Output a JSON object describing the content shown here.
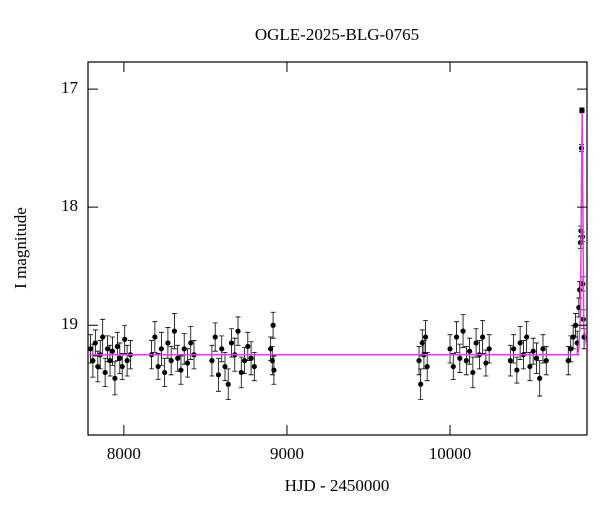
{
  "chart_data": {
    "type": "scatter",
    "title": "OGLE-2025-BLG-0765",
    "x_label": "HJD - 2450000",
    "y_label": "I magnitude",
    "xlim": [
      7780,
      10840
    ],
    "ylim": [
      19.93,
      16.77
    ],
    "xticks": [
      8000,
      9000,
      10000
    ],
    "yticks": [
      17,
      18,
      19
    ],
    "color": "#000000",
    "x": [
      7795,
      7810,
      7825,
      7840,
      7855,
      7870,
      7885,
      7900,
      7915,
      7930,
      7945,
      7960,
      7975,
      7990,
      8005,
      8020,
      8040,
      8170,
      8190,
      8210,
      8230,
      8250,
      8270,
      8290,
      8310,
      8330,
      8350,
      8370,
      8390,
      8410,
      8430,
      8540,
      8560,
      8580,
      8600,
      8620,
      8640,
      8660,
      8680,
      8700,
      8720,
      8740,
      8760,
      8780,
      8800,
      8900,
      8910,
      8915,
      8920,
      9810,
      9820,
      9830,
      9840,
      9850,
      9860,
      10000,
      10020,
      10040,
      10060,
      10080,
      10100,
      10120,
      10140,
      10160,
      10180,
      10200,
      10220,
      10240,
      10370,
      10390,
      10410,
      10430,
      10450,
      10470,
      10490,
      10510,
      10530,
      10550,
      10570,
      10590,
      10725,
      10740,
      10755,
      10770,
      10780,
      10790,
      10795,
      10800,
      10803,
      10806,
      10808,
      10810,
      10812,
      10815,
      10818,
      10822
    ],
    "values": [
      19.2,
      19.3,
      19.15,
      19.35,
      19.25,
      19.1,
      19.4,
      19.2,
      19.3,
      19.22,
      19.45,
      19.18,
      19.28,
      19.35,
      19.12,
      19.3,
      19.25,
      19.25,
      19.1,
      19.35,
      19.2,
      19.4,
      19.15,
      19.3,
      19.05,
      19.28,
      19.38,
      19.2,
      19.32,
      19.15,
      19.25,
      19.3,
      19.1,
      19.42,
      19.2,
      19.35,
      19.5,
      19.15,
      19.25,
      19.05,
      19.4,
      19.3,
      19.18,
      19.28,
      19.35,
      19.2,
      19.3,
      19.0,
      19.38,
      19.3,
      19.5,
      19.15,
      19.25,
      19.1,
      19.35,
      19.2,
      19.35,
      19.1,
      19.28,
      19.05,
      19.3,
      19.22,
      19.4,
      19.15,
      19.25,
      19.1,
      19.32,
      19.2,
      19.3,
      19.2,
      19.38,
      19.15,
      19.25,
      19.1,
      19.35,
      19.22,
      19.28,
      19.45,
      19.2,
      19.3,
      19.3,
      19.2,
      19.1,
      19.0,
      19.15,
      18.85,
      18.7,
      18.3,
      18.2,
      17.5,
      17.18,
      17.18,
      18.25,
      18.65,
      18.95,
      19.1
    ],
    "errors": [
      0.12,
      0.14,
      0.11,
      0.13,
      0.12,
      0.15,
      0.12,
      0.11,
      0.13,
      0.12,
      0.14,
      0.12,
      0.13,
      0.11,
      0.12,
      0.13,
      0.12,
      0.12,
      0.13,
      0.11,
      0.14,
      0.12,
      0.13,
      0.12,
      0.15,
      0.11,
      0.12,
      0.13,
      0.12,
      0.14,
      0.12,
      0.13,
      0.12,
      0.14,
      0.11,
      0.12,
      0.13,
      0.12,
      0.14,
      0.12,
      0.13,
      0.11,
      0.12,
      0.14,
      0.12,
      0.1,
      0.12,
      0.11,
      0.12,
      0.12,
      0.13,
      0.11,
      0.12,
      0.14,
      0.12,
      0.12,
      0.11,
      0.13,
      0.12,
      0.14,
      0.12,
      0.11,
      0.13,
      0.12,
      0.12,
      0.14,
      0.11,
      0.12,
      0.13,
      0.12,
      0.11,
      0.14,
      0.12,
      0.13,
      0.12,
      0.11,
      0.13,
      0.15,
      0.12,
      0.12,
      0.12,
      0.11,
      0.1,
      0.1,
      0.1,
      0.08,
      0.07,
      0.05,
      0.04,
      0.03,
      0.02,
      0.02,
      0.04,
      0.06,
      0.08,
      0.1
    ],
    "model": {
      "color": "#e040e0",
      "x": [
        7780,
        10780,
        10790,
        10800,
        10805,
        10810,
        10815,
        10820,
        10840
      ],
      "values": [
        19.25,
        19.25,
        19.2,
        18.9,
        18.0,
        17.2,
        18.0,
        19.0,
        19.2
      ]
    }
  }
}
